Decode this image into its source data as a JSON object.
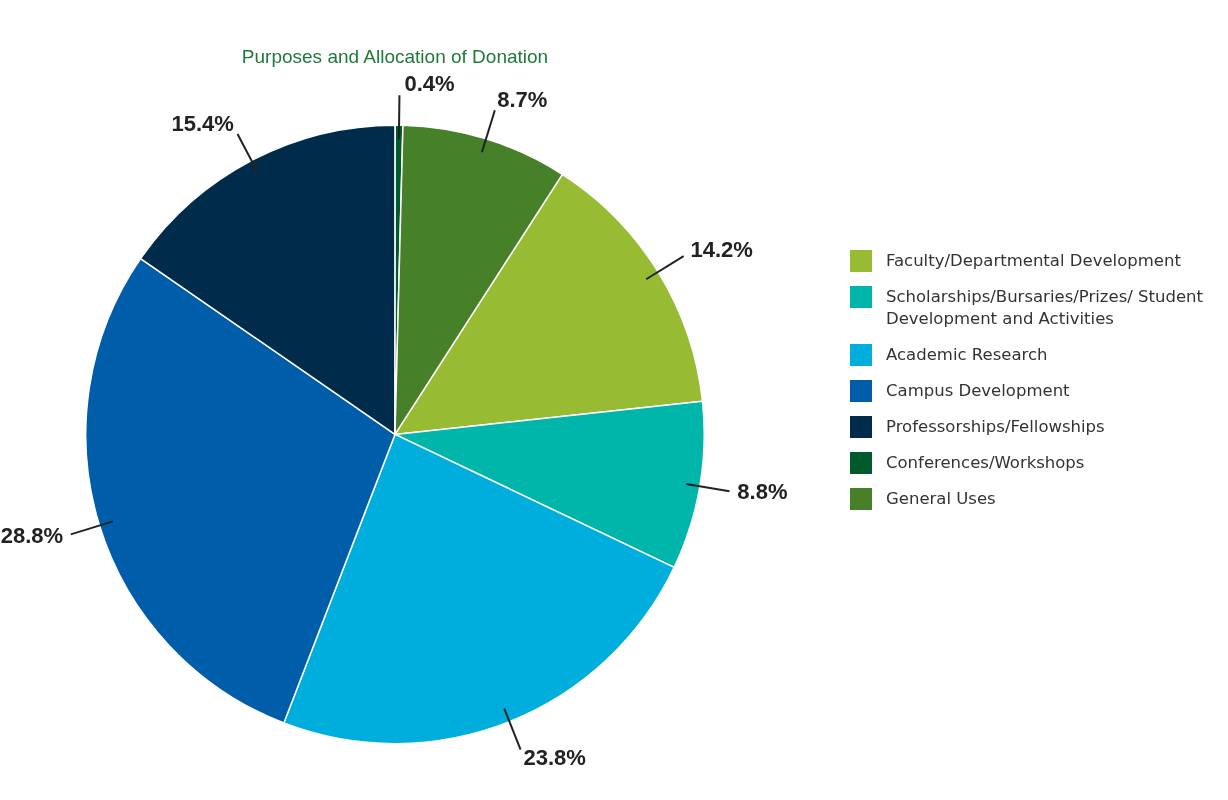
{
  "chart_data": {
    "type": "pie",
    "title": "Purposes and Allocation of Donation",
    "categories": [
      "Faculty/Departmental Development",
      "Scholarships/Bursaries/Prizes/ Student Development and Activities",
      "Academic Research",
      "Campus Development",
      "Professorships/Fellowships",
      "Conferences/Workshops",
      "General Uses"
    ],
    "values": [
      14.2,
      8.8,
      23.8,
      28.8,
      15.4,
      0.4,
      8.7
    ],
    "value_labels": [
      "14.2%",
      "8.8%",
      "23.8%",
      "28.8%",
      "15.4%",
      "0.4%",
      "8.7%"
    ],
    "colors": [
      "#97bb32",
      "#00b5aa",
      "#00aedd",
      "#005daa",
      "#002b4a",
      "#005a2b",
      "#468129"
    ],
    "legend": "right"
  }
}
